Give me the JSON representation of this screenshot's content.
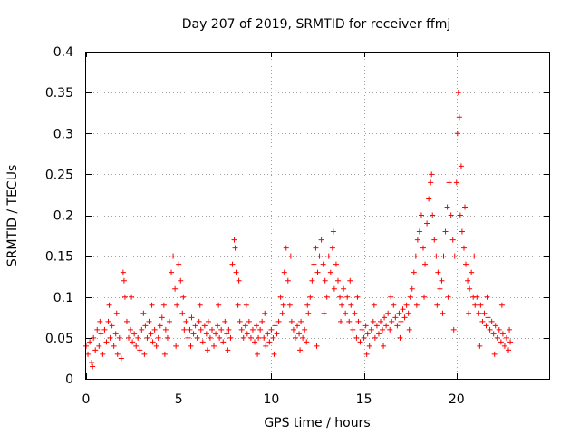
{
  "chart_data": {
    "type": "scatter",
    "title": "Day 207 of 2019, SRMTID for receiver ffmj",
    "xlabel": "GPS time / hours",
    "ylabel": "SRMTID / TECUs",
    "xlim": [
      0,
      25
    ],
    "ylim": [
      0,
      0.4
    ],
    "xticks": [
      0,
      5,
      10,
      15,
      20
    ],
    "xtick_labels": [
      "0",
      "5",
      "10",
      "15",
      "20"
    ],
    "yticks": [
      0,
      0.05,
      0.1,
      0.15,
      0.2,
      0.25,
      0.3,
      0.35,
      0.4
    ],
    "ytick_labels": [
      "0",
      "0.05",
      "0.1",
      "0.15",
      "0.2",
      "0.25",
      "0.3",
      "0.35",
      "0.4"
    ],
    "grid": true,
    "marker": "+",
    "series": [
      {
        "name": "SRMTID",
        "color": "#ff0000",
        "points": [
          [
            0.0,
            0.04
          ],
          [
            0.1,
            0.03
          ],
          [
            0.2,
            0.045
          ],
          [
            0.3,
            0.02
          ],
          [
            0.4,
            0.05
          ],
          [
            0.5,
            0.035
          ],
          [
            0.6,
            0.06
          ],
          [
            0.7,
            0.04
          ],
          [
            0.8,
            0.055
          ],
          [
            0.9,
            0.03
          ],
          [
            1.0,
            0.06
          ],
          [
            1.1,
            0.045
          ],
          [
            1.2,
            0.07
          ],
          [
            1.3,
            0.05
          ],
          [
            1.4,
            0.065
          ],
          [
            1.5,
            0.04
          ],
          [
            1.6,
            0.055
          ],
          [
            1.7,
            0.03
          ],
          [
            1.8,
            0.05
          ],
          [
            1.9,
            0.025
          ],
          [
            2.0,
            0.13
          ],
          [
            2.05,
            0.12
          ],
          [
            2.1,
            0.1
          ],
          [
            2.2,
            0.07
          ],
          [
            2.3,
            0.05
          ],
          [
            2.4,
            0.06
          ],
          [
            2.5,
            0.045
          ],
          [
            2.6,
            0.055
          ],
          [
            2.7,
            0.04
          ],
          [
            2.8,
            0.05
          ],
          [
            2.9,
            0.035
          ],
          [
            3.0,
            0.06
          ],
          [
            3.1,
            0.08
          ],
          [
            3.2,
            0.065
          ],
          [
            3.3,
            0.05
          ],
          [
            3.4,
            0.07
          ],
          [
            3.5,
            0.055
          ],
          [
            3.6,
            0.045
          ],
          [
            3.7,
            0.06
          ],
          [
            3.8,
            0.04
          ],
          [
            3.9,
            0.05
          ],
          [
            4.0,
            0.065
          ],
          [
            4.1,
            0.075
          ],
          [
            4.2,
            0.09
          ],
          [
            4.3,
            0.06
          ],
          [
            4.4,
            0.05
          ],
          [
            4.5,
            0.07
          ],
          [
            4.6,
            0.13
          ],
          [
            4.7,
            0.15
          ],
          [
            4.8,
            0.11
          ],
          [
            4.9,
            0.09
          ],
          [
            5.0,
            0.14
          ],
          [
            5.1,
            0.12
          ],
          [
            5.2,
            0.08
          ],
          [
            5.3,
            0.06
          ],
          [
            5.4,
            0.07
          ],
          [
            5.5,
            0.05
          ],
          [
            5.6,
            0.06
          ],
          [
            5.7,
            0.075
          ],
          [
            5.8,
            0.055
          ],
          [
            5.9,
            0.065
          ],
          [
            6.0,
            0.05
          ],
          [
            6.1,
            0.07
          ],
          [
            6.2,
            0.06
          ],
          [
            6.3,
            0.045
          ],
          [
            6.4,
            0.065
          ],
          [
            6.5,
            0.055
          ],
          [
            6.6,
            0.07
          ],
          [
            6.7,
            0.05
          ],
          [
            6.8,
            0.06
          ],
          [
            6.9,
            0.04
          ],
          [
            7.0,
            0.055
          ],
          [
            7.1,
            0.065
          ],
          [
            7.2,
            0.05
          ],
          [
            7.3,
            0.06
          ],
          [
            7.4,
            0.045
          ],
          [
            7.5,
            0.07
          ],
          [
            7.6,
            0.055
          ],
          [
            7.7,
            0.06
          ],
          [
            7.8,
            0.05
          ],
          [
            7.9,
            0.14
          ],
          [
            8.0,
            0.17
          ],
          [
            8.05,
            0.16
          ],
          [
            8.1,
            0.13
          ],
          [
            8.2,
            0.09
          ],
          [
            8.3,
            0.07
          ],
          [
            8.4,
            0.06
          ],
          [
            8.5,
            0.05
          ],
          [
            8.6,
            0.065
          ],
          [
            8.7,
            0.055
          ],
          [
            8.8,
            0.07
          ],
          [
            8.9,
            0.05
          ],
          [
            9.0,
            0.06
          ],
          [
            9.1,
            0.045
          ],
          [
            9.2,
            0.065
          ],
          [
            9.3,
            0.05
          ],
          [
            9.4,
            0.06
          ],
          [
            9.5,
            0.07
          ],
          [
            9.6,
            0.05
          ],
          [
            9.7,
            0.04
          ],
          [
            9.8,
            0.055
          ],
          [
            9.9,
            0.045
          ],
          [
            10.0,
            0.06
          ],
          [
            10.1,
            0.05
          ],
          [
            10.2,
            0.065
          ],
          [
            10.3,
            0.055
          ],
          [
            10.4,
            0.07
          ],
          [
            10.5,
            0.1
          ],
          [
            10.6,
            0.08
          ],
          [
            10.7,
            0.13
          ],
          [
            10.8,
            0.16
          ],
          [
            10.9,
            0.12
          ],
          [
            11.0,
            0.09
          ],
          [
            11.1,
            0.07
          ],
          [
            11.2,
            0.06
          ],
          [
            11.3,
            0.05
          ],
          [
            11.4,
            0.065
          ],
          [
            11.5,
            0.055
          ],
          [
            11.6,
            0.07
          ],
          [
            11.7,
            0.05
          ],
          [
            11.8,
            0.06
          ],
          [
            11.9,
            0.045
          ],
          [
            12.0,
            0.08
          ],
          [
            12.1,
            0.1
          ],
          [
            12.2,
            0.12
          ],
          [
            12.3,
            0.14
          ],
          [
            12.4,
            0.16
          ],
          [
            12.5,
            0.13
          ],
          [
            12.6,
            0.15
          ],
          [
            12.7,
            0.17
          ],
          [
            12.8,
            0.14
          ],
          [
            12.9,
            0.12
          ],
          [
            13.0,
            0.1
          ],
          [
            13.1,
            0.15
          ],
          [
            13.2,
            0.13
          ],
          [
            13.3,
            0.16
          ],
          [
            13.4,
            0.11
          ],
          [
            13.5,
            0.14
          ],
          [
            13.6,
            0.12
          ],
          [
            13.7,
            0.1
          ],
          [
            13.8,
            0.09
          ],
          [
            13.9,
            0.11
          ],
          [
            14.0,
            0.08
          ],
          [
            14.1,
            0.1
          ],
          [
            14.2,
            0.07
          ],
          [
            14.3,
            0.09
          ],
          [
            14.4,
            0.06
          ],
          [
            14.5,
            0.08
          ],
          [
            14.6,
            0.05
          ],
          [
            14.7,
            0.07
          ],
          [
            14.8,
            0.045
          ],
          [
            14.9,
            0.06
          ],
          [
            15.0,
            0.05
          ],
          [
            15.1,
            0.065
          ],
          [
            15.2,
            0.055
          ],
          [
            15.3,
            0.04
          ],
          [
            15.4,
            0.06
          ],
          [
            15.5,
            0.07
          ],
          [
            15.6,
            0.05
          ],
          [
            15.7,
            0.065
          ],
          [
            15.8,
            0.055
          ],
          [
            15.9,
            0.07
          ],
          [
            16.0,
            0.06
          ],
          [
            16.1,
            0.075
          ],
          [
            16.2,
            0.065
          ],
          [
            16.3,
            0.08
          ],
          [
            16.4,
            0.06
          ],
          [
            16.5,
            0.07
          ],
          [
            16.6,
            0.09
          ],
          [
            16.7,
            0.075
          ],
          [
            16.8,
            0.065
          ],
          [
            16.9,
            0.08
          ],
          [
            17.0,
            0.07
          ],
          [
            17.1,
            0.085
          ],
          [
            17.2,
            0.075
          ],
          [
            17.3,
            0.09
          ],
          [
            17.4,
            0.08
          ],
          [
            17.5,
            0.1
          ],
          [
            17.6,
            0.11
          ],
          [
            17.7,
            0.13
          ],
          [
            17.8,
            0.15
          ],
          [
            17.9,
            0.17
          ],
          [
            18.0,
            0.18
          ],
          [
            18.1,
            0.2
          ],
          [
            18.2,
            0.16
          ],
          [
            18.3,
            0.14
          ],
          [
            18.4,
            0.19
          ],
          [
            18.5,
            0.22
          ],
          [
            18.6,
            0.24
          ],
          [
            18.7,
            0.2
          ],
          [
            18.8,
            0.17
          ],
          [
            18.9,
            0.15
          ],
          [
            19.0,
            0.13
          ],
          [
            19.1,
            0.11
          ],
          [
            19.2,
            0.12
          ],
          [
            19.3,
            0.15
          ],
          [
            19.4,
            0.18
          ],
          [
            19.5,
            0.21
          ],
          [
            19.6,
            0.24
          ],
          [
            19.7,
            0.2
          ],
          [
            19.8,
            0.17
          ],
          [
            19.9,
            0.15
          ],
          [
            20.0,
            0.24
          ],
          [
            20.05,
            0.3
          ],
          [
            20.1,
            0.35
          ],
          [
            20.15,
            0.32
          ],
          [
            20.2,
            0.2
          ],
          [
            20.3,
            0.18
          ],
          [
            20.4,
            0.16
          ],
          [
            20.5,
            0.14
          ],
          [
            20.6,
            0.12
          ],
          [
            20.7,
            0.11
          ],
          [
            20.8,
            0.13
          ],
          [
            20.9,
            0.1
          ],
          [
            21.0,
            0.09
          ],
          [
            21.1,
            0.1
          ],
          [
            21.2,
            0.08
          ],
          [
            21.3,
            0.09
          ],
          [
            21.4,
            0.07
          ],
          [
            21.5,
            0.08
          ],
          [
            21.6,
            0.065
          ],
          [
            21.7,
            0.075
          ],
          [
            21.8,
            0.06
          ],
          [
            21.9,
            0.07
          ],
          [
            22.0,
            0.055
          ],
          [
            22.1,
            0.065
          ],
          [
            22.2,
            0.05
          ],
          [
            22.3,
            0.06
          ],
          [
            22.4,
            0.045
          ],
          [
            22.5,
            0.055
          ],
          [
            22.6,
            0.04
          ],
          [
            22.7,
            0.05
          ],
          [
            22.8,
            0.035
          ],
          [
            22.9,
            0.045
          ],
          [
            0.35,
            0.015
          ],
          [
            0.75,
            0.07
          ],
          [
            1.25,
            0.09
          ],
          [
            1.65,
            0.08
          ],
          [
            2.45,
            0.1
          ],
          [
            3.15,
            0.03
          ],
          [
            3.55,
            0.09
          ],
          [
            4.25,
            0.03
          ],
          [
            4.85,
            0.04
          ],
          [
            5.25,
            0.1
          ],
          [
            5.65,
            0.04
          ],
          [
            6.15,
            0.09
          ],
          [
            6.55,
            0.035
          ],
          [
            7.15,
            0.09
          ],
          [
            7.65,
            0.035
          ],
          [
            8.25,
            0.12
          ],
          [
            8.65,
            0.09
          ],
          [
            9.25,
            0.03
          ],
          [
            9.65,
            0.08
          ],
          [
            10.15,
            0.03
          ],
          [
            10.65,
            0.09
          ],
          [
            11.05,
            0.15
          ],
          [
            11.55,
            0.035
          ],
          [
            11.95,
            0.09
          ],
          [
            12.45,
            0.04
          ],
          [
            12.85,
            0.08
          ],
          [
            13.35,
            0.18
          ],
          [
            13.75,
            0.07
          ],
          [
            14.25,
            0.12
          ],
          [
            14.65,
            0.1
          ],
          [
            15.15,
            0.03
          ],
          [
            15.55,
            0.09
          ],
          [
            16.05,
            0.04
          ],
          [
            16.45,
            0.1
          ],
          [
            16.95,
            0.05
          ],
          [
            17.45,
            0.06
          ],
          [
            17.85,
            0.09
          ],
          [
            18.25,
            0.1
          ],
          [
            18.65,
            0.25
          ],
          [
            18.95,
            0.09
          ],
          [
            19.25,
            0.08
          ],
          [
            19.55,
            0.1
          ],
          [
            19.85,
            0.06
          ],
          [
            20.25,
            0.26
          ],
          [
            20.45,
            0.21
          ],
          [
            20.65,
            0.08
          ],
          [
            20.95,
            0.15
          ],
          [
            21.25,
            0.04
          ],
          [
            21.65,
            0.1
          ],
          [
            22.05,
            0.03
          ],
          [
            22.45,
            0.09
          ],
          [
            22.85,
            0.06
          ]
        ]
      }
    ]
  }
}
